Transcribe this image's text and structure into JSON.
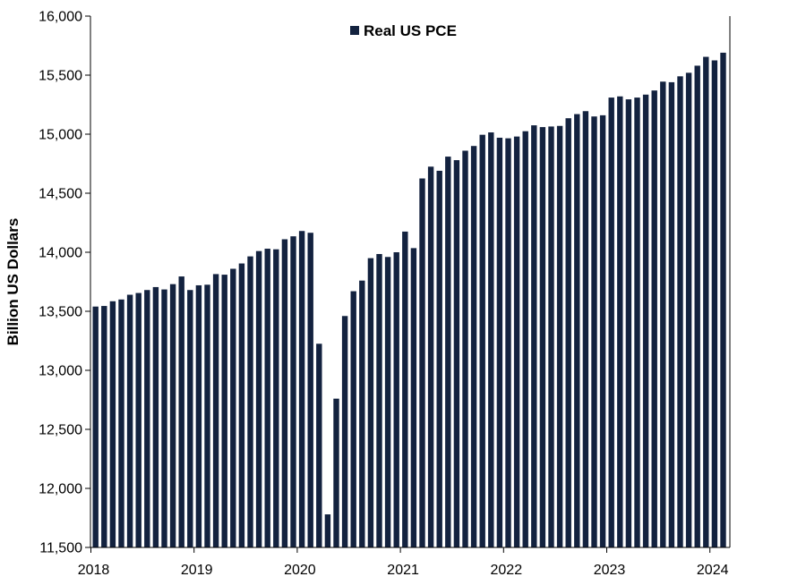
{
  "colors": {
    "bar": "#13223F",
    "axis": "#000000",
    "background": "#FFFFFF"
  },
  "chart_data": {
    "type": "bar",
    "title": "",
    "xlabel": "",
    "ylabel": "Billion US Dollars",
    "ylim": [
      11500,
      16000
    ],
    "yticks": [
      11500,
      12000,
      12500,
      13000,
      13500,
      14000,
      14500,
      15000,
      15500,
      16000
    ],
    "ytick_labels": [
      "11,500",
      "12,000",
      "12,500",
      "13,000",
      "13,500",
      "14,000",
      "14,500",
      "15,000",
      "15,500",
      "16,000"
    ],
    "xtick_labels": [
      "2018",
      "2019",
      "2020",
      "2021",
      "2022",
      "2023",
      "2024"
    ],
    "grid": false,
    "legend": {
      "position": "top-center",
      "entries": [
        "Real US PCE"
      ]
    },
    "series": [
      {
        "name": "Real US PCE",
        "color": "#13223F",
        "start": "2018-01",
        "frequency": "monthly",
        "values": [
          13540,
          13545,
          13585,
          13600,
          13640,
          13655,
          13680,
          13705,
          13685,
          13730,
          13795,
          13680,
          13720,
          13725,
          13815,
          13810,
          13860,
          13905,
          13965,
          14010,
          14030,
          14025,
          14110,
          14135,
          14180,
          14165,
          13225,
          11780,
          12760,
          13460,
          13670,
          13760,
          13950,
          13985,
          13960,
          14000,
          14175,
          14035,
          14625,
          14725,
          14690,
          14810,
          14780,
          14860,
          14900,
          14995,
          15015,
          14970,
          14965,
          14980,
          15025,
          15075,
          15060,
          15065,
          15070,
          15135,
          15170,
          15195,
          15150,
          15160,
          15310,
          15320,
          15295,
          15310,
          15335,
          15370,
          15445,
          15440,
          15490,
          15520,
          15580,
          15655,
          15625,
          15690
        ]
      }
    ]
  }
}
